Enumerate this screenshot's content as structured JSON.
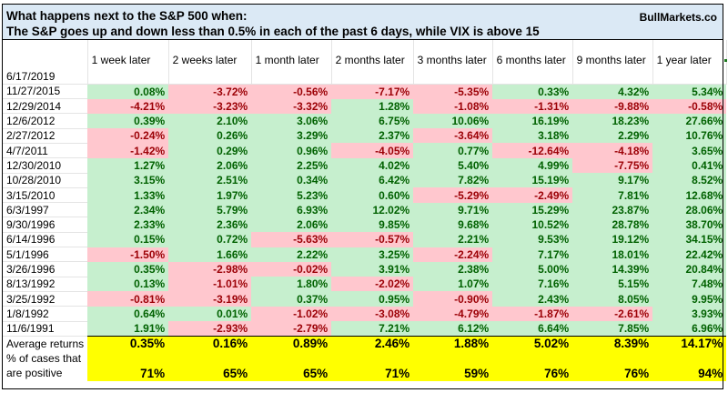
{
  "title": {
    "line1": "What happens next to the S&P 500 when:",
    "line2": "The S&P goes up and down less than 0.5% in each of the past 6 days, while VIX is above 15",
    "brand": "BullMarkets.co"
  },
  "columns": [
    "",
    "1 week later",
    "2 weeks later",
    "1 month later",
    "2 months later",
    "3 months later",
    "6 months later",
    "9 months later",
    "1 year later"
  ],
  "current_date": "6/17/2019",
  "rows": [
    {
      "date": "11/27/2015",
      "values": [
        "0.08%",
        "-3.72%",
        "-0.56%",
        "-7.17%",
        "-5.35%",
        "0.33%",
        "4.32%",
        "5.34%"
      ]
    },
    {
      "date": "12/29/2014",
      "values": [
        "-4.21%",
        "-3.23%",
        "-3.32%",
        "1.28%",
        "-1.08%",
        "-1.31%",
        "-9.88%",
        "-0.58%"
      ]
    },
    {
      "date": "12/6/2012",
      "values": [
        "0.39%",
        "2.10%",
        "3.06%",
        "6.75%",
        "10.06%",
        "16.19%",
        "18.23%",
        "27.66%"
      ]
    },
    {
      "date": "2/27/2012",
      "values": [
        "-0.24%",
        "0.26%",
        "3.29%",
        "2.37%",
        "-3.64%",
        "3.18%",
        "2.29%",
        "10.76%"
      ]
    },
    {
      "date": "4/7/2011",
      "values": [
        "-1.42%",
        "0.29%",
        "0.96%",
        "-4.05%",
        "0.77%",
        "-12.64%",
        "-4.18%",
        "3.65%"
      ]
    },
    {
      "date": "12/30/2010",
      "values": [
        "1.27%",
        "2.06%",
        "2.25%",
        "4.02%",
        "5.40%",
        "4.99%",
        "-7.75%",
        "0.41%"
      ]
    },
    {
      "date": "10/28/2010",
      "values": [
        "3.15%",
        "2.51%",
        "0.34%",
        "6.42%",
        "7.82%",
        "15.19%",
        "9.17%",
        "8.52%"
      ]
    },
    {
      "date": "3/15/2010",
      "values": [
        "1.33%",
        "1.97%",
        "5.23%",
        "0.60%",
        "-5.29%",
        "-2.49%",
        "7.81%",
        "12.68%"
      ]
    },
    {
      "date": "6/3/1997",
      "values": [
        "2.34%",
        "5.79%",
        "6.93%",
        "12.02%",
        "9.71%",
        "15.29%",
        "23.87%",
        "28.06%"
      ]
    },
    {
      "date": "9/30/1996",
      "values": [
        "2.33%",
        "2.36%",
        "2.06%",
        "9.85%",
        "9.68%",
        "10.52%",
        "28.78%",
        "38.70%"
      ]
    },
    {
      "date": "6/14/1996",
      "values": [
        "0.15%",
        "0.72%",
        "-5.63%",
        "-0.57%",
        "2.21%",
        "9.53%",
        "19.12%",
        "34.15%"
      ]
    },
    {
      "date": "5/1/1996",
      "values": [
        "-1.50%",
        "1.66%",
        "2.22%",
        "3.25%",
        "-2.24%",
        "7.17%",
        "18.01%",
        "22.42%"
      ]
    },
    {
      "date": "3/26/1996",
      "values": [
        "0.35%",
        "-2.98%",
        "-0.02%",
        "3.91%",
        "2.38%",
        "5.00%",
        "14.39%",
        "20.84%"
      ]
    },
    {
      "date": "8/13/1992",
      "values": [
        "0.13%",
        "-1.01%",
        "1.80%",
        "-2.02%",
        "1.07%",
        "7.16%",
        "5.15%",
        "7.48%"
      ]
    },
    {
      "date": "3/25/1992",
      "values": [
        "-0.81%",
        "-3.19%",
        "0.37%",
        "0.95%",
        "-0.90%",
        "2.43%",
        "8.05%",
        "9.95%"
      ]
    },
    {
      "date": "1/8/1992",
      "values": [
        "0.64%",
        "0.01%",
        "-1.02%",
        "-3.08%",
        "-4.79%",
        "-1.87%",
        "-2.61%",
        "3.93%"
      ]
    },
    {
      "date": "11/6/1991",
      "values": [
        "1.91%",
        "-2.93%",
        "-2.79%",
        "7.21%",
        "6.12%",
        "6.64%",
        "7.85%",
        "6.96%"
      ]
    }
  ],
  "summary": {
    "average_label": "Average returns",
    "average_values": [
      "0.35%",
      "0.16%",
      "0.89%",
      "2.46%",
      "1.88%",
      "5.02%",
      "8.39%",
      "14.17%"
    ],
    "positive_label": "% of cases that are positive",
    "positive_values": [
      "71%",
      "65%",
      "65%",
      "71%",
      "59%",
      "76%",
      "76%",
      "94%"
    ]
  },
  "colors": {
    "positive_fill": "#c6efce",
    "positive_text": "#006100",
    "negative_fill": "#ffc7ce",
    "negative_text": "#9c0006",
    "summary_fill": "#ffff00",
    "title_fill": "#dbe9f5"
  }
}
